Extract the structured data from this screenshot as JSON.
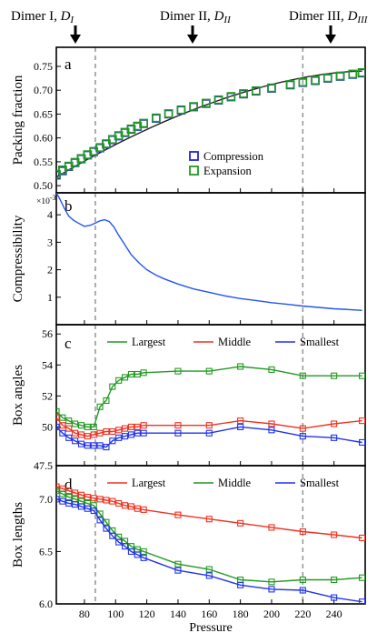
{
  "header": {
    "dimers": [
      {
        "label_main": "Dimer I, ",
        "label_sym": "D",
        "label_sub": "I",
        "x": 72
      },
      {
        "label_main": "Dimer II, ",
        "label_sym": "D",
        "label_sub": "II",
        "x": 155
      },
      {
        "label_main": "Dimer III, ",
        "label_sym": "D",
        "label_sub": "III",
        "x": 240
      }
    ]
  },
  "colors": {
    "compression": "#2222dd",
    "expansion": "#229922",
    "largest": "#229922",
    "middle": "#ee3322",
    "smallest": "#2233ee",
    "dashed_line": "#999999",
    "curve": "#2255ee"
  },
  "chart_data": [
    {
      "panel": "a",
      "type": "line",
      "ylabel": "Packing fraction",
      "xlim": [
        62,
        260
      ],
      "ylim": [
        0.485,
        0.79
      ],
      "yticks": [
        "0.50",
        "0.55",
        "0.60",
        "0.65",
        "0.70",
        "0.75"
      ],
      "ytick_values": [
        0.5,
        0.55,
        0.6,
        0.65,
        0.7,
        0.75
      ],
      "vlines": [
        87,
        220
      ],
      "legend": {
        "position": "bottom-right",
        "entries": [
          "Compression",
          "Expansion"
        ]
      },
      "series": [
        {
          "name": "Compression",
          "marker": "square",
          "color": "#2222dd",
          "x": [
            62,
            66,
            70,
            74,
            78,
            82,
            86,
            90,
            94,
            98,
            102,
            106,
            110,
            114,
            118,
            126,
            134,
            142,
            150,
            158,
            166,
            174,
            182,
            190,
            200,
            212,
            220,
            228,
            236,
            244,
            252,
            258
          ],
          "y": [
            0.522,
            0.531,
            0.54,
            0.548,
            0.556,
            0.564,
            0.571,
            0.579,
            0.587,
            0.596,
            0.604,
            0.611,
            0.618,
            0.624,
            0.63,
            0.641,
            0.65,
            0.658,
            0.665,
            0.672,
            0.679,
            0.686,
            0.692,
            0.698,
            0.704,
            0.711,
            0.716,
            0.72,
            0.725,
            0.729,
            0.733,
            0.736
          ]
        },
        {
          "name": "Expansion",
          "marker": "square",
          "color": "#229922",
          "x": [
            62,
            66,
            70,
            74,
            78,
            82,
            86,
            90,
            94,
            98,
            102,
            106,
            110,
            114,
            118,
            126,
            134,
            142,
            150,
            158,
            166,
            174,
            182,
            190,
            200,
            212,
            220,
            228,
            236,
            244,
            252,
            258
          ],
          "y": [
            0.524,
            0.533,
            0.541,
            0.549,
            0.557,
            0.565,
            0.572,
            0.58,
            0.588,
            0.597,
            0.605,
            0.612,
            0.619,
            0.625,
            0.631,
            0.642,
            0.651,
            0.659,
            0.666,
            0.673,
            0.68,
            0.687,
            0.693,
            0.699,
            0.705,
            0.712,
            0.717,
            0.721,
            0.726,
            0.73,
            0.734,
            0.737
          ]
        }
      ],
      "fit_line": {
        "x": [
          62,
          258
        ],
        "y": [
          0.518,
          0.74
        ]
      }
    },
    {
      "panel": "b",
      "type": "line",
      "ylabel": "Compressibility",
      "multiplier": "×10-3",
      "xlim": [
        62,
        260
      ],
      "ylim": [
        0,
        4.8
      ],
      "yticks": [
        "1",
        "2",
        "3",
        "4"
      ],
      "ytick_values": [
        1,
        2,
        3,
        4
      ],
      "vlines": [
        87,
        220
      ],
      "series": [
        {
          "name": "",
          "color": "#2255ee",
          "x": [
            62,
            64,
            67,
            70,
            73,
            76,
            80,
            84,
            87,
            90,
            93,
            96,
            99,
            102,
            106,
            110,
            115,
            120,
            126,
            132,
            140,
            150,
            160,
            170,
            180,
            190,
            200,
            210,
            220,
            230,
            240,
            250,
            258
          ],
          "y": [
            4.8,
            4.6,
            4.25,
            3.95,
            3.8,
            3.7,
            3.58,
            3.62,
            3.7,
            3.78,
            3.82,
            3.75,
            3.55,
            3.25,
            2.9,
            2.55,
            2.25,
            2.0,
            1.8,
            1.65,
            1.48,
            1.3,
            1.18,
            1.05,
            0.95,
            0.88,
            0.8,
            0.74,
            0.68,
            0.63,
            0.58,
            0.55,
            0.52
          ]
        }
      ]
    },
    {
      "panel": "c",
      "type": "line",
      "ylabel": "Box angles",
      "xlim": [
        62,
        260
      ],
      "ylim": [
        47.5,
        56.6
      ],
      "yticks": [
        "47.5",
        "50",
        "52",
        "54",
        "56"
      ],
      "ytick_values": [
        47.5,
        50,
        52,
        54,
        56
      ],
      "vlines": [
        87,
        220
      ],
      "legend": {
        "position": "top",
        "entries": [
          "Largest",
          "Middle",
          "Smallest"
        ]
      },
      "series": [
        {
          "name": "Largest",
          "color": "#229922",
          "x": [
            62,
            66,
            70,
            74,
            78,
            82,
            86,
            90,
            94,
            98,
            102,
            106,
            110,
            114,
            118,
            140,
            160,
            180,
            200,
            220,
            240,
            258
          ],
          "y": [
            51.0,
            50.6,
            50.4,
            50.2,
            50.1,
            50.0,
            50.0,
            51.3,
            51.7,
            52.6,
            53.0,
            53.2,
            53.4,
            53.4,
            53.5,
            53.6,
            53.6,
            53.9,
            53.7,
            53.3,
            53.3,
            53.3
          ]
        },
        {
          "name": "Middle",
          "color": "#ee3322",
          "x": [
            62,
            66,
            70,
            74,
            78,
            82,
            86,
            90,
            94,
            98,
            102,
            106,
            110,
            114,
            118,
            140,
            160,
            180,
            200,
            220,
            240,
            258
          ],
          "y": [
            50.6,
            50.1,
            49.9,
            49.6,
            49.5,
            49.4,
            49.5,
            49.6,
            49.7,
            49.7,
            49.8,
            49.9,
            50.0,
            50.0,
            50.1,
            50.1,
            50.1,
            50.4,
            50.2,
            49.9,
            50.2,
            50.4
          ]
        },
        {
          "name": "Smallest",
          "color": "#2233ee",
          "x": [
            62,
            66,
            70,
            74,
            78,
            82,
            86,
            90,
            94,
            98,
            102,
            106,
            110,
            114,
            118,
            140,
            160,
            180,
            200,
            220,
            240,
            258
          ],
          "y": [
            50.0,
            49.6,
            49.3,
            49.1,
            48.9,
            48.8,
            48.8,
            48.8,
            48.7,
            49.1,
            49.3,
            49.4,
            49.5,
            49.6,
            49.6,
            49.6,
            49.6,
            50.0,
            49.8,
            49.4,
            49.3,
            49.0
          ]
        }
      ]
    },
    {
      "panel": "d",
      "type": "line",
      "ylabel": "Box lengths",
      "xlabel": "Pressure",
      "xlim": [
        62,
        260
      ],
      "ylim": [
        6.0,
        7.32
      ],
      "yticks": [
        "6.0",
        "6.5",
        "7.0"
      ],
      "ytick_values": [
        6.0,
        6.5,
        7.0
      ],
      "xticks": [
        "80",
        "100",
        "120",
        "140",
        "160",
        "180",
        "200",
        "220",
        "240"
      ],
      "xtick_values": [
        80,
        100,
        120,
        140,
        160,
        180,
        200,
        220,
        240
      ],
      "vlines": [
        87,
        220
      ],
      "legend": {
        "position": "top",
        "entries": [
          "Largest",
          "Middle",
          "Smallest"
        ]
      },
      "series": [
        {
          "name": "Largest",
          "color": "#ee3322",
          "x": [
            62,
            66,
            70,
            74,
            78,
            82,
            86,
            90,
            94,
            98,
            102,
            106,
            110,
            114,
            118,
            140,
            160,
            180,
            200,
            220,
            240,
            258
          ],
          "y": [
            7.12,
            7.1,
            7.08,
            7.06,
            7.04,
            7.02,
            7.01,
            7.0,
            6.99,
            6.98,
            6.96,
            6.94,
            6.93,
            6.91,
            6.9,
            6.85,
            6.81,
            6.77,
            6.73,
            6.69,
            6.66,
            6.63
          ]
        },
        {
          "name": "Middle",
          "color": "#229922",
          "x": [
            62,
            66,
            70,
            74,
            78,
            82,
            86,
            90,
            94,
            98,
            102,
            106,
            110,
            114,
            118,
            140,
            160,
            180,
            200,
            220,
            240,
            258
          ],
          "y": [
            7.08,
            7.05,
            7.02,
            7.0,
            6.98,
            6.96,
            6.94,
            6.86,
            6.78,
            6.7,
            6.64,
            6.6,
            6.55,
            6.52,
            6.5,
            6.38,
            6.33,
            6.23,
            6.21,
            6.23,
            6.23,
            6.25
          ]
        },
        {
          "name": "Smallest",
          "color": "#2233ee",
          "x": [
            62,
            66,
            70,
            74,
            78,
            82,
            86,
            90,
            94,
            98,
            102,
            106,
            110,
            114,
            118,
            140,
            160,
            180,
            200,
            220,
            240,
            258
          ],
          "y": [
            7.0,
            6.98,
            6.96,
            6.95,
            6.93,
            6.91,
            6.89,
            6.8,
            6.72,
            6.65,
            6.59,
            6.55,
            6.5,
            6.47,
            6.44,
            6.32,
            6.27,
            6.18,
            6.14,
            6.13,
            6.06,
            6.02
          ]
        }
      ]
    }
  ]
}
